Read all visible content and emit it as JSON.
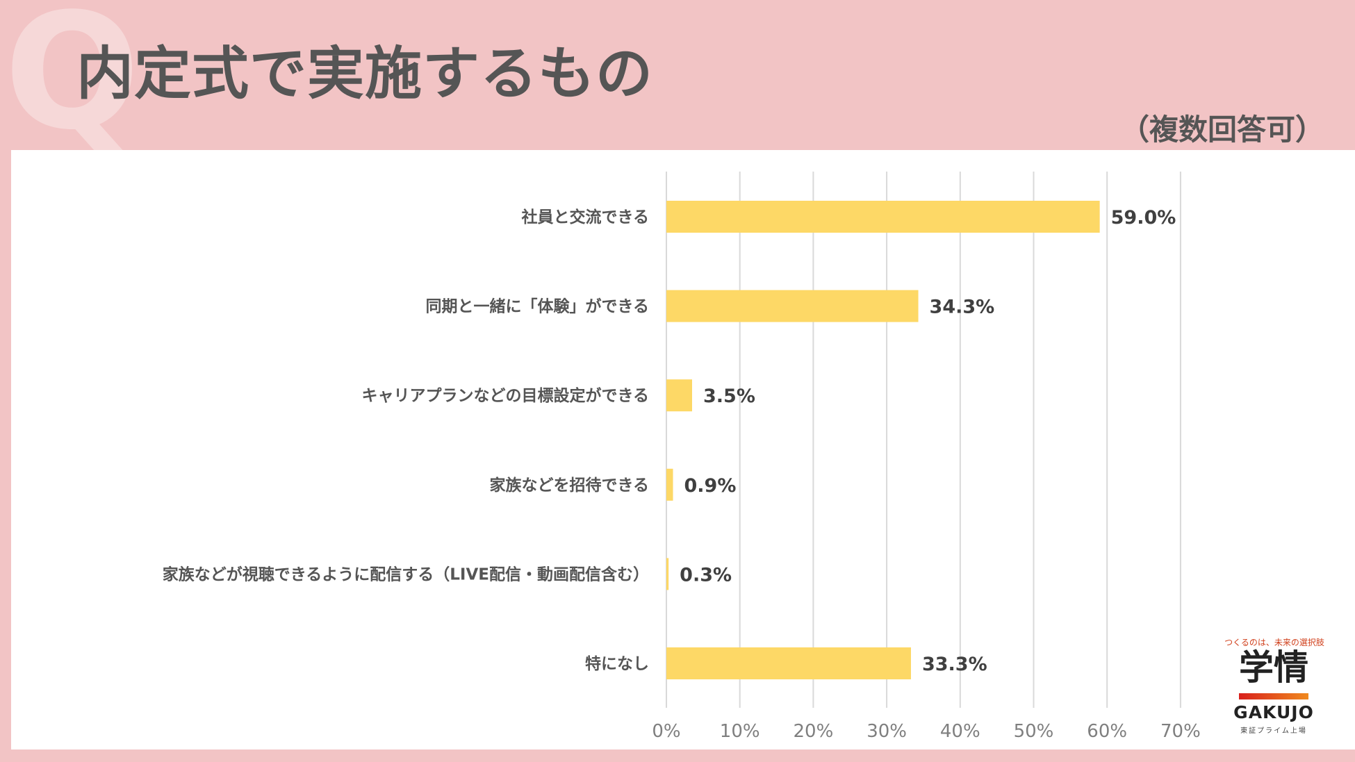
{
  "slide": {
    "watermark": "Q",
    "title": "内定式で実施するもの",
    "note": "（複数回答可）"
  },
  "colors": {
    "background": "#f2c4c5",
    "panel": "#ffffff",
    "bar": "#fdd866",
    "grid": "#d9d9d9",
    "title_text": "#555555"
  },
  "chart_data": {
    "type": "bar",
    "orientation": "horizontal",
    "title": "内定式で実施するもの",
    "categories": [
      "社員と交流できる",
      "同期と一緒に「体験」ができる",
      "キャリアプランなどの目標設定ができる",
      "家族などを招待できる",
      "家族などが視聴できるように配信する（LIVE配信・動画配信含む）",
      "特になし"
    ],
    "values": [
      59.0,
      34.3,
      3.5,
      0.9,
      0.3,
      33.3
    ],
    "value_labels": [
      "59.0%",
      "34.3%",
      "3.5%",
      "0.9%",
      "0.3%",
      "33.3%"
    ],
    "xlim": [
      0,
      70
    ],
    "ticks": [
      0,
      10,
      20,
      30,
      40,
      50,
      60,
      70
    ],
    "tick_labels": [
      "0%",
      "10%",
      "20%",
      "30%",
      "40%",
      "50%",
      "60%",
      "70%"
    ],
    "xlabel": "",
    "ylabel": "",
    "grid": true,
    "legend": "none"
  },
  "logo": {
    "tagline": "つくるのは、未来の選択肢",
    "kanji": "学情",
    "name": "GAKUJO",
    "listing": "東証プライム上場"
  }
}
